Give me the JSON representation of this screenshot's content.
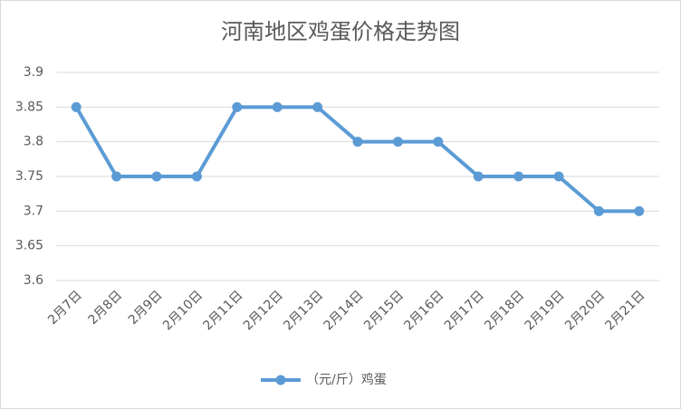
{
  "chart_data": {
    "type": "line",
    "title": "河南地区鸡蛋价格走势图",
    "categories": [
      "2月7日",
      "2月8日",
      "2月9日",
      "2月10日",
      "2月11日",
      "2月12日",
      "2月13日",
      "2月14日",
      "2月15日",
      "2月16日",
      "2月17日",
      "2月18日",
      "2月19日",
      "2月20日",
      "2月21日"
    ],
    "series": [
      {
        "name": "（元/斤）鸡蛋",
        "color": "#5b9bd5",
        "values": [
          3.85,
          3.75,
          3.75,
          3.75,
          3.85,
          3.85,
          3.85,
          3.8,
          3.8,
          3.8,
          3.75,
          3.75,
          3.75,
          3.7,
          3.7
        ]
      }
    ],
    "ylim": [
      3.6,
      3.9
    ],
    "yticks": [
      3.6,
      3.65,
      3.7,
      3.75,
      3.8,
      3.85,
      3.9
    ],
    "grid": true,
    "legend": "bottom"
  }
}
